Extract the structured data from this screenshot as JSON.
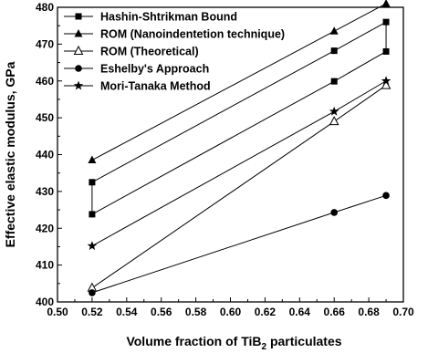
{
  "chart_data": {
    "type": "line",
    "xlabel": "Volume fraction of TiB",
    "xlabel_sub": "2",
    "xlabel_suffix": " particulates",
    "ylabel": "Effective elastic modulus, GPa",
    "xlim": [
      0.5,
      0.7
    ],
    "ylim": [
      400,
      480
    ],
    "x_ticks": [
      "0.50",
      "0.52",
      "0.54",
      "0.56",
      "0.58",
      "0.60",
      "0.62",
      "0.64",
      "0.66",
      "0.68",
      "0.70"
    ],
    "y_ticks": [
      "400",
      "410",
      "420",
      "430",
      "440",
      "450",
      "460",
      "470",
      "480"
    ],
    "grid": false,
    "legend_position": "top-left",
    "series": [
      {
        "name": "Hashin-Shtrikman Bound",
        "marker": "square",
        "x": [
          0.52,
          0.66,
          0.69
        ],
        "y": [
          432.5,
          468.2,
          476.0
        ]
      },
      {
        "name": "Hashin-Shtrikman Bound",
        "marker": "square",
        "x": [
          0.52,
          0.66,
          0.69
        ],
        "y": [
          423.8,
          459.9,
          468.0
        ],
        "legend": false
      },
      {
        "name": "ROM (Nanoindentetion technique)",
        "marker": "triangle-filled",
        "x": [
          0.52,
          0.66,
          0.69
        ],
        "y": [
          438.5,
          473.5,
          481.0
        ]
      },
      {
        "name": "ROM (Theoretical)",
        "marker": "triangle-open",
        "x": [
          0.52,
          0.66,
          0.69
        ],
        "y": [
          403.8,
          449.0,
          458.8
        ]
      },
      {
        "name": "Eshelby's Approach",
        "marker": "circle",
        "x": [
          0.52,
          0.66,
          0.69
        ],
        "y": [
          402.5,
          424.3,
          428.9
        ]
      },
      {
        "name": "Mori-Tanaka Method",
        "marker": "star",
        "x": [
          0.52,
          0.66,
          0.69
        ],
        "y": [
          415.2,
          451.7,
          460.0
        ]
      }
    ],
    "connectors": [
      {
        "x": 0.52,
        "y": [
          423.8,
          432.5
        ]
      },
      {
        "x": 0.69,
        "y": [
          468.0,
          476.0
        ]
      }
    ]
  }
}
